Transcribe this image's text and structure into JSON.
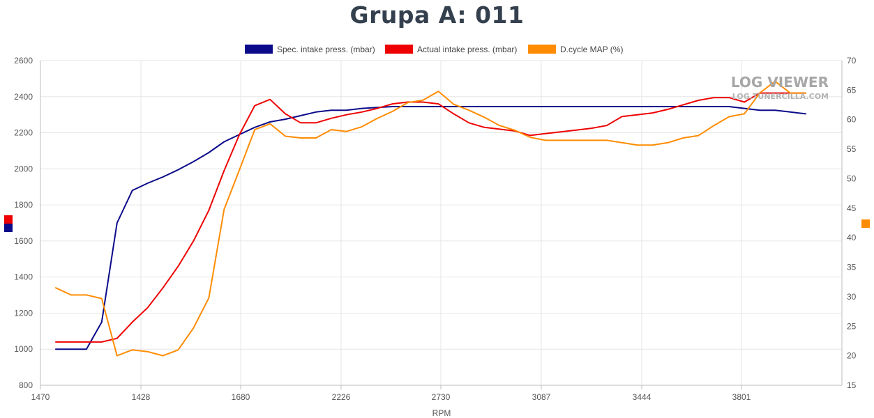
{
  "chart_data": {
    "type": "line",
    "title": "Grupa A: 011",
    "xlabel": "RPM",
    "x_ticks": [
      "1470",
      "1428",
      "1680",
      "2226",
      "2730",
      "3087",
      "3444",
      "3801"
    ],
    "y_left_lim": [
      800,
      2600
    ],
    "y_left_ticks": [
      800,
      1000,
      1200,
      1400,
      1600,
      1800,
      2000,
      2200,
      2400,
      2600
    ],
    "y_right_lim": [
      15,
      70
    ],
    "y_right_ticks": [
      15,
      20,
      25,
      30,
      35,
      40,
      45,
      50,
      55,
      60,
      65,
      70
    ],
    "grid": true,
    "legend_position": "top-center",
    "x": [
      1,
      2,
      3,
      4,
      5,
      6,
      7,
      8,
      9,
      10,
      11,
      12,
      13,
      14,
      15,
      16,
      17,
      18,
      19,
      20,
      21,
      22,
      23,
      24,
      25,
      26,
      27,
      28,
      29,
      30,
      31,
      32,
      33,
      34,
      35,
      36,
      37,
      38,
      39,
      40,
      41,
      42,
      43,
      44,
      45,
      46,
      47,
      48,
      49,
      50
    ],
    "series": [
      {
        "name": "Spec. intake press. (mbar)",
        "color": "#0a0a8a",
        "axis": "left",
        "values": [
          1000,
          1000,
          1000,
          1150,
          1700,
          1880,
          1920,
          1955,
          1995,
          2040,
          2090,
          2150,
          2190,
          2230,
          2260,
          2275,
          2295,
          2315,
          2325,
          2325,
          2335,
          2340,
          2345,
          2345,
          2345,
          2345,
          2345,
          2345,
          2345,
          2345,
          2345,
          2345,
          2345,
          2345,
          2345,
          2345,
          2345,
          2345,
          2345,
          2345,
          2345,
          2345,
          2345,
          2345,
          2345,
          2335,
          2325,
          2325,
          2315,
          2305
        ]
      },
      {
        "name": "Actual intake press. (mbar)",
        "color": "#ee0000",
        "axis": "left",
        "values": [
          1040,
          1040,
          1040,
          1040,
          1060,
          1150,
          1230,
          1340,
          1460,
          1600,
          1770,
          1990,
          2190,
          2350,
          2385,
          2305,
          2255,
          2255,
          2280,
          2300,
          2315,
          2335,
          2360,
          2370,
          2370,
          2360,
          2305,
          2255,
          2230,
          2220,
          2210,
          2185,
          2195,
          2205,
          2215,
          2225,
          2240,
          2290,
          2300,
          2310,
          2330,
          2355,
          2380,
          2395,
          2395,
          2370,
          2420,
          2420,
          2420,
          2420
        ]
      },
      {
        "name": "D.cycle MAP (%)",
        "color": "#ff8c00",
        "axis": "right",
        "values": [
          31.5,
          30.3,
          30.3,
          29.7,
          20.0,
          21.0,
          20.7,
          20.0,
          21.0,
          24.7,
          29.8,
          44.8,
          51.5,
          58.3,
          59.3,
          57.2,
          56.9,
          56.9,
          58.3,
          58.0,
          58.8,
          60.2,
          61.4,
          62.9,
          63.3,
          64.8,
          62.6,
          61.6,
          60.4,
          59.0,
          58.2,
          57.0,
          56.5,
          56.5,
          56.5,
          56.5,
          56.5,
          56.1,
          55.7,
          55.7,
          56.1,
          56.9,
          57.3,
          59.0,
          60.5,
          61.0,
          64.5,
          66.5,
          64.5,
          64.5
        ]
      }
    ]
  },
  "watermark": {
    "title": "LOG VIEWER",
    "subtitle": "LOG.TUNERCILLA.COM"
  }
}
